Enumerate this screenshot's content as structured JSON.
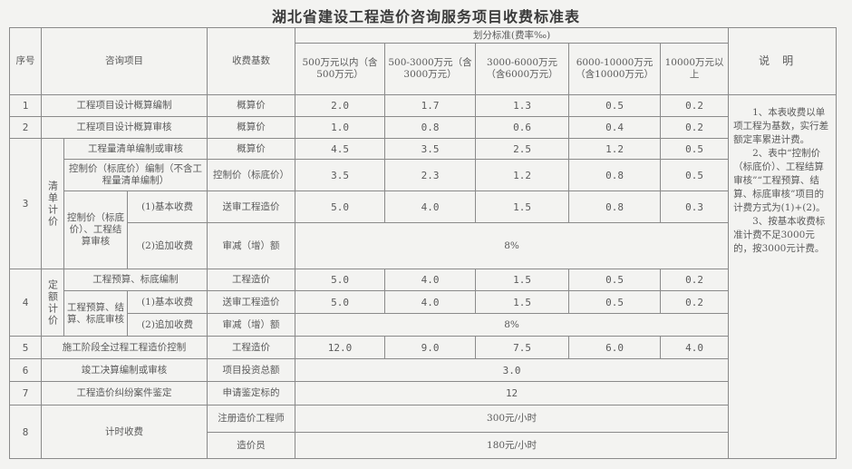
{
  "title": "湖北省建设工程造价咨询服务项目收费标准表",
  "header": {
    "seq": "序号",
    "item": "咨询项目",
    "base": "收费基数",
    "rate_group": "划分标准(费率‰)",
    "ranges": [
      "500万元以内（含500万元）",
      "500-3000万元（含3000万元）",
      "3000-6000万元（含6000万元）",
      "6000-10000万元（含10000万元）",
      "10000万元以上"
    ],
    "notes": "说明"
  },
  "rows": {
    "r1": {
      "seq": "1",
      "item": "工程项目设计概算编制",
      "base": "概算价",
      "rates": [
        "2.0",
        "1.7",
        "1.3",
        "0.5",
        "0.2"
      ]
    },
    "r2": {
      "seq": "2",
      "item": "工程项目设计概算审核",
      "base": "概算价",
      "rates": [
        "1.0",
        "0.8",
        "0.6",
        "0.4",
        "0.2"
      ]
    },
    "r3": {
      "seq": "3",
      "group": "清单计价",
      "a": {
        "item": "工程量清单编制或审核",
        "base": "概算价",
        "rates": [
          "4.5",
          "3.5",
          "2.5",
          "1.2",
          "0.5"
        ]
      },
      "b": {
        "item": "控制价（标底价）编制（不含工程量清单编制）",
        "base": "控制价（标底价）",
        "rates": [
          "3.5",
          "2.3",
          "1.2",
          "0.8",
          "0.5"
        ]
      },
      "c": {
        "item": "控制价（标底价）、工程结算审核",
        "sub": "(1)基本收费",
        "base": "送审工程造价",
        "rates": [
          "5.0",
          "4.0",
          "1.5",
          "0.8",
          "0.3"
        ]
      },
      "d": {
        "sub": "(2)追加收费",
        "base": "审减（增）额",
        "rate": "8%"
      }
    },
    "r4": {
      "seq": "4",
      "group": "定额计价",
      "a": {
        "item": "工程预算、标底编制",
        "base": "工程造价",
        "rates": [
          "5.0",
          "4.0",
          "1.5",
          "0.5",
          "0.2"
        ]
      },
      "b": {
        "item": "工程预算、结算、标底审核",
        "sub": "(1)基本收费",
        "base": "送审工程造价",
        "rates": [
          "5.0",
          "4.0",
          "1.5",
          "0.5",
          "0.2"
        ]
      },
      "c": {
        "sub": "(2)追加收费",
        "base": "审减（增）额",
        "rate": "8%"
      }
    },
    "r5": {
      "seq": "5",
      "item": "施工阶段全过程工程造价控制",
      "base": "工程造价",
      "rates": [
        "12.0",
        "9.0",
        "7.5",
        "6.0",
        "4.0"
      ]
    },
    "r6": {
      "seq": "6",
      "item": "竣工决算编制或审核",
      "base": "项目投资总额",
      "rate": "3.0"
    },
    "r7": {
      "seq": "7",
      "item": "工程造价纠纷案件鉴定",
      "base": "申请鉴定标的",
      "rate": "12"
    },
    "r8": {
      "seq": "8",
      "item": "计时收费",
      "a": {
        "base": "注册造价工程师",
        "rate": "300元/小时"
      },
      "b": {
        "base": "造价员",
        "rate": "180元/小时"
      }
    }
  },
  "notes": [
    "1、本表收费以单项工程为基数，实行差额定率累进计费。",
    "2、表中“控制价（标底价）、工程结算审核”“工程预算、结算、标底审核”项目的计费方式为(1)+(2)。",
    "3、按基本收费标准计费不足3000元的，按3000元计费。"
  ]
}
